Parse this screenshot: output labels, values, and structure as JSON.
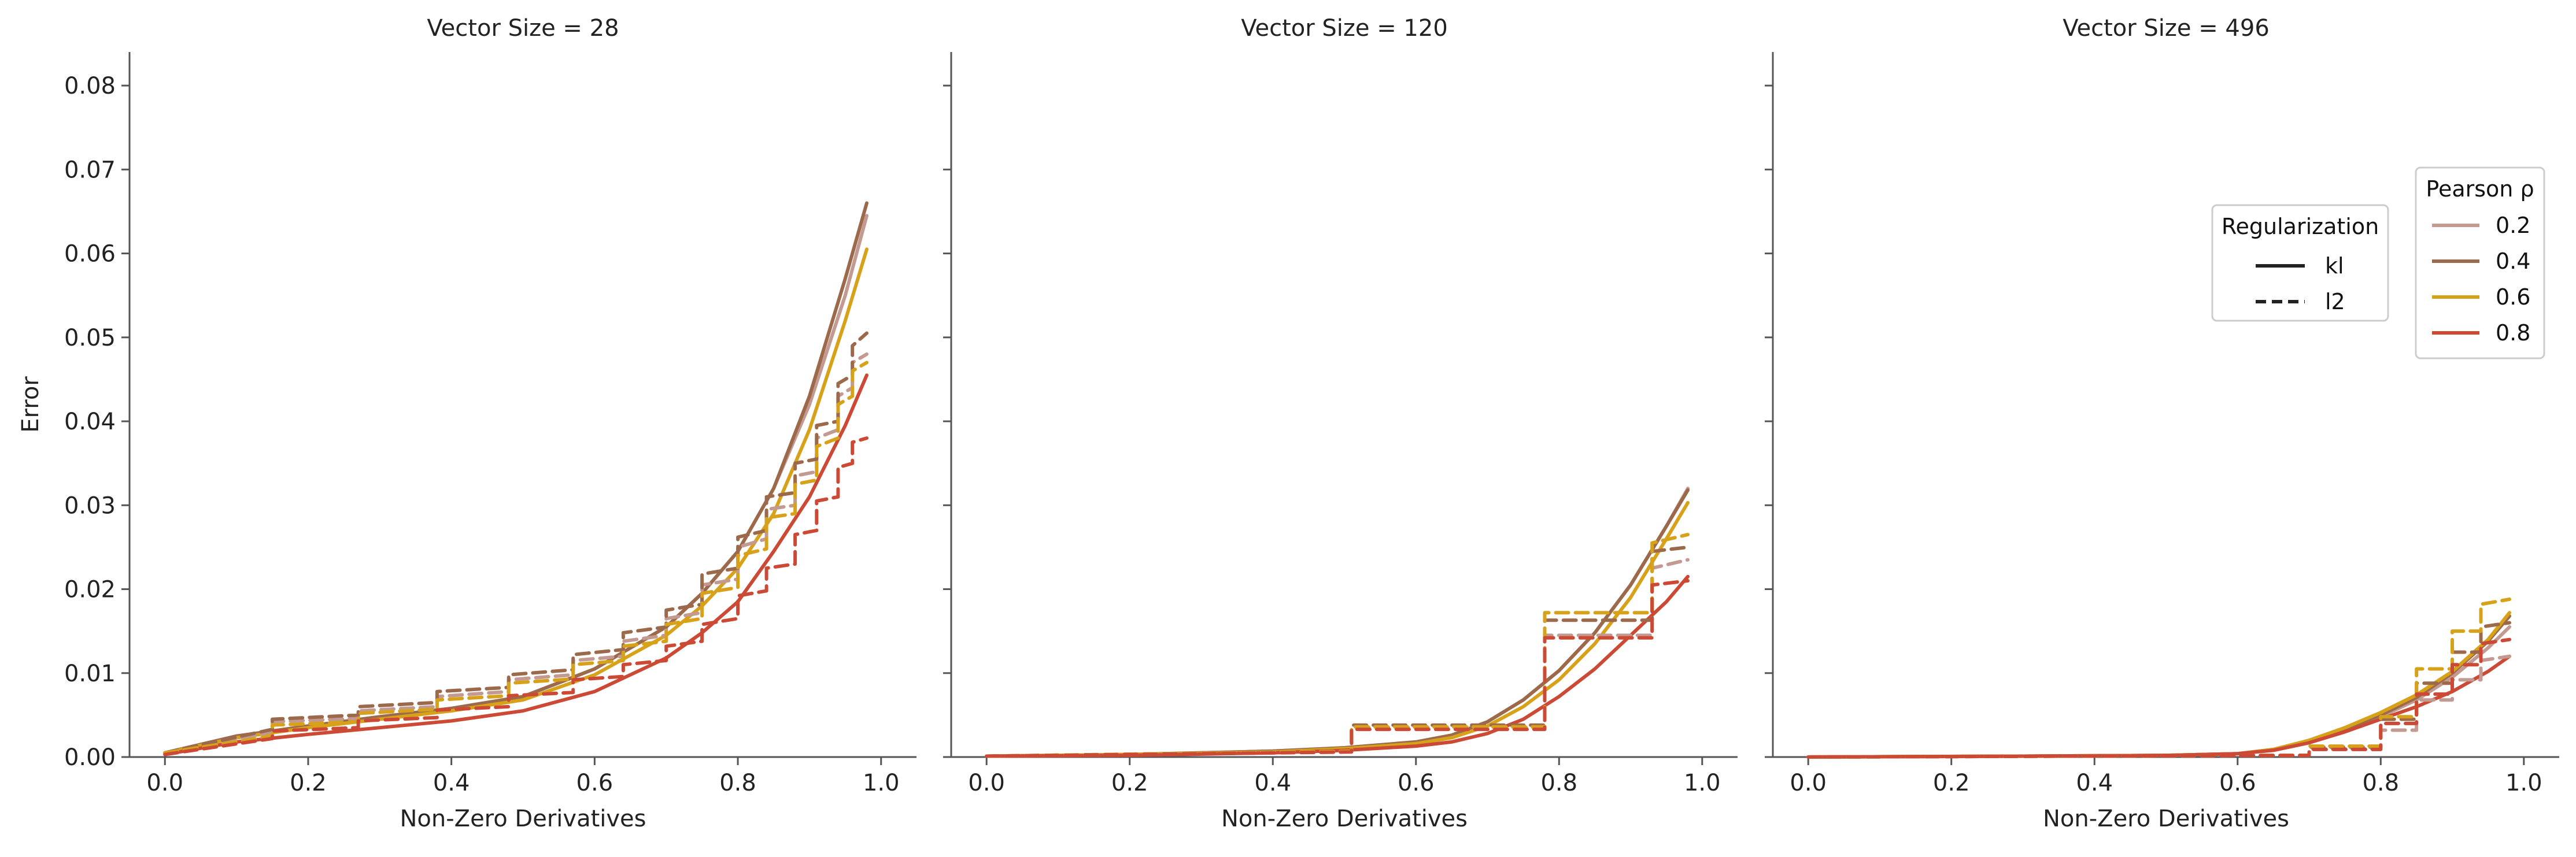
{
  "chart_data": {
    "type": "line",
    "shared_y_axis": true,
    "ylabel": "Error",
    "xlabel": "Non-Zero Derivatives",
    "xlim": [
      0.0,
      1.0
    ],
    "ylim": [
      0.0,
      0.084
    ],
    "xticks": [
      "0.0",
      "0.2",
      "0.4",
      "0.6",
      "0.8",
      "1.0"
    ],
    "yticks": [
      "0.00",
      "0.01",
      "0.02",
      "0.03",
      "0.04",
      "0.05",
      "0.06",
      "0.07",
      "0.08"
    ],
    "grid": false,
    "colors": {
      "0.2": "#c39a92",
      "0.4": "#9c6a4a",
      "0.6": "#d7a21a",
      "0.8": "#cc4a35"
    },
    "legend_regularization": {
      "title": "Regularization",
      "placement": "top-right, third panel",
      "entries": [
        {
          "label": "kl",
          "style": "solid"
        },
        {
          "label": "l2",
          "style": "dashed"
        }
      ]
    },
    "legend_pearson": {
      "title": "Pearson ρ",
      "placement": "top-right, third panel",
      "entries": [
        {
          "label": "0.2"
        },
        {
          "label": "0.4"
        },
        {
          "label": "0.6"
        },
        {
          "label": "0.8"
        }
      ]
    },
    "panels": [
      {
        "title": "Vector Size = 28",
        "series": [
          {
            "rho": "0.2",
            "reg": "kl",
            "x": [
              0.0,
              0.1,
              0.2,
              0.3,
              0.4,
              0.5,
              0.6,
              0.7,
              0.75,
              0.8,
              0.85,
              0.9,
              0.95,
              0.98
            ],
            "y": [
              0.0005,
              0.0025,
              0.0037,
              0.0048,
              0.0058,
              0.0072,
              0.0105,
              0.0155,
              0.0195,
              0.0245,
              0.032,
              0.042,
              0.055,
              0.0645
            ]
          },
          {
            "rho": "0.4",
            "reg": "kl",
            "x": [
              0.0,
              0.1,
              0.2,
              0.3,
              0.4,
              0.5,
              0.6,
              0.7,
              0.75,
              0.8,
              0.85,
              0.9,
              0.95,
              0.98
            ],
            "y": [
              0.0005,
              0.0025,
              0.0037,
              0.0048,
              0.0058,
              0.0072,
              0.0105,
              0.0155,
              0.0195,
              0.0245,
              0.032,
              0.043,
              0.057,
              0.066
            ]
          },
          {
            "rho": "0.6",
            "reg": "kl",
            "x": [
              0.0,
              0.1,
              0.2,
              0.3,
              0.4,
              0.5,
              0.6,
              0.7,
              0.75,
              0.8,
              0.85,
              0.9,
              0.95,
              0.98
            ],
            "y": [
              0.0005,
              0.0023,
              0.0035,
              0.0045,
              0.0055,
              0.0068,
              0.0098,
              0.0145,
              0.018,
              0.0225,
              0.029,
              0.039,
              0.052,
              0.0605
            ]
          },
          {
            "rho": "0.8",
            "reg": "kl",
            "x": [
              0.0,
              0.1,
              0.2,
              0.3,
              0.4,
              0.5,
              0.6,
              0.7,
              0.75,
              0.8,
              0.85,
              0.9,
              0.95,
              0.98
            ],
            "y": [
              0.0003,
              0.0018,
              0.0027,
              0.0035,
              0.0043,
              0.0055,
              0.0078,
              0.0118,
              0.0148,
              0.0185,
              0.0245,
              0.031,
              0.0395,
              0.0455
            ]
          },
          {
            "rho": "0.2",
            "reg": "l2",
            "x": [
              0.0,
              0.15,
              0.15,
              0.27,
              0.27,
              0.38,
              0.38,
              0.48,
              0.48,
              0.57,
              0.57,
              0.64,
              0.64,
              0.7,
              0.7,
              0.75,
              0.75,
              0.8,
              0.8,
              0.84,
              0.84,
              0.88,
              0.88,
              0.91,
              0.91,
              0.94,
              0.94,
              0.96,
              0.96,
              0.98
            ],
            "y": [
              0.0005,
              0.003,
              0.0042,
              0.0046,
              0.0055,
              0.006,
              0.0072,
              0.0078,
              0.0092,
              0.0098,
              0.0115,
              0.012,
              0.0138,
              0.0145,
              0.0165,
              0.0172,
              0.0205,
              0.0212,
              0.025,
              0.026,
              0.0295,
              0.03,
              0.0335,
              0.034,
              0.038,
              0.039,
              0.043,
              0.044,
              0.047,
              0.048
            ]
          },
          {
            "rho": "0.4",
            "reg": "l2",
            "x": [
              0.0,
              0.15,
              0.15,
              0.27,
              0.27,
              0.38,
              0.38,
              0.48,
              0.48,
              0.57,
              0.57,
              0.64,
              0.64,
              0.7,
              0.7,
              0.75,
              0.75,
              0.8,
              0.8,
              0.84,
              0.84,
              0.88,
              0.88,
              0.91,
              0.91,
              0.94,
              0.94,
              0.96,
              0.96,
              0.98
            ],
            "y": [
              0.0005,
              0.0033,
              0.0045,
              0.005,
              0.006,
              0.0065,
              0.0078,
              0.0083,
              0.0098,
              0.0104,
              0.0122,
              0.0128,
              0.0148,
              0.0155,
              0.0175,
              0.0182,
              0.0218,
              0.0225,
              0.0262,
              0.027,
              0.031,
              0.0315,
              0.035,
              0.0355,
              0.0395,
              0.04,
              0.0445,
              0.0455,
              0.049,
              0.0505
            ]
          },
          {
            "rho": "0.6",
            "reg": "l2",
            "x": [
              0.0,
              0.15,
              0.15,
              0.27,
              0.27,
              0.38,
              0.38,
              0.48,
              0.48,
              0.57,
              0.57,
              0.64,
              0.64,
              0.7,
              0.7,
              0.75,
              0.75,
              0.8,
              0.8,
              0.84,
              0.84,
              0.88,
              0.88,
              0.91,
              0.91,
              0.94,
              0.94,
              0.96,
              0.96,
              0.98
            ],
            "y": [
              0.0005,
              0.0025,
              0.0038,
              0.0042,
              0.0052,
              0.0057,
              0.0068,
              0.0073,
              0.0088,
              0.0093,
              0.011,
              0.0115,
              0.0132,
              0.0138,
              0.0158,
              0.0165,
              0.0195,
              0.0202,
              0.024,
              0.0248,
              0.0285,
              0.029,
              0.0325,
              0.033,
              0.037,
              0.038,
              0.042,
              0.043,
              0.046,
              0.047
            ]
          },
          {
            "rho": "0.8",
            "reg": "l2",
            "x": [
              0.0,
              0.15,
              0.15,
              0.27,
              0.27,
              0.38,
              0.38,
              0.48,
              0.48,
              0.57,
              0.57,
              0.64,
              0.64,
              0.7,
              0.7,
              0.75,
              0.75,
              0.8,
              0.8,
              0.84,
              0.84,
              0.88,
              0.88,
              0.91,
              0.91,
              0.94,
              0.94,
              0.96,
              0.96,
              0.98
            ],
            "y": [
              0.0003,
              0.0022,
              0.0031,
              0.0035,
              0.0043,
              0.0047,
              0.0056,
              0.006,
              0.0073,
              0.0077,
              0.0092,
              0.0096,
              0.011,
              0.0115,
              0.0132,
              0.0138,
              0.0158,
              0.0165,
              0.0192,
              0.0198,
              0.0225,
              0.023,
              0.0265,
              0.027,
              0.0305,
              0.031,
              0.0345,
              0.035,
              0.0375,
              0.038
            ]
          }
        ]
      },
      {
        "title": "Vector Size = 120",
        "series": [
          {
            "rho": "0.2",
            "reg": "kl",
            "x": [
              0.0,
              0.2,
              0.4,
              0.5,
              0.6,
              0.65,
              0.7,
              0.75,
              0.8,
              0.85,
              0.9,
              0.95,
              0.98
            ],
            "y": [
              0.0001,
              0.0003,
              0.0007,
              0.0011,
              0.0018,
              0.0026,
              0.0042,
              0.0068,
              0.0103,
              0.0148,
              0.0205,
              0.0275,
              0.032
            ]
          },
          {
            "rho": "0.4",
            "reg": "kl",
            "x": [
              0.0,
              0.2,
              0.4,
              0.5,
              0.6,
              0.65,
              0.7,
              0.75,
              0.8,
              0.85,
              0.9,
              0.95,
              0.98
            ],
            "y": [
              0.0001,
              0.0003,
              0.0007,
              0.0011,
              0.0018,
              0.0026,
              0.0042,
              0.0068,
              0.0103,
              0.0148,
              0.0205,
              0.0275,
              0.0318
            ]
          },
          {
            "rho": "0.6",
            "reg": "kl",
            "x": [
              0.0,
              0.2,
              0.4,
              0.5,
              0.6,
              0.65,
              0.7,
              0.75,
              0.8,
              0.85,
              0.9,
              0.95,
              0.98
            ],
            "y": [
              0.0001,
              0.0003,
              0.0006,
              0.001,
              0.0016,
              0.0023,
              0.0037,
              0.006,
              0.0092,
              0.0135,
              0.019,
              0.026,
              0.0303
            ]
          },
          {
            "rho": "0.8",
            "reg": "kl",
            "x": [
              0.0,
              0.2,
              0.4,
              0.5,
              0.6,
              0.65,
              0.7,
              0.75,
              0.8,
              0.85,
              0.9,
              0.95,
              0.98
            ],
            "y": [
              0.0001,
              0.0002,
              0.0005,
              0.0008,
              0.0013,
              0.0018,
              0.0028,
              0.0045,
              0.0072,
              0.0105,
              0.0145,
              0.0185,
              0.0215
            ]
          },
          {
            "rho": "0.2",
            "reg": "l2",
            "x": [
              0.0,
              0.51,
              0.51,
              0.78,
              0.78,
              0.93,
              0.93,
              0.98
            ],
            "y": [
              0.0001,
              0.0007,
              0.0035,
              0.0035,
              0.0145,
              0.0145,
              0.0225,
              0.0235
            ]
          },
          {
            "rho": "0.4",
            "reg": "l2",
            "x": [
              0.0,
              0.51,
              0.51,
              0.78,
              0.78,
              0.93,
              0.93,
              0.98
            ],
            "y": [
              0.0001,
              0.0007,
              0.0038,
              0.0038,
              0.0163,
              0.0163,
              0.0245,
              0.025
            ]
          },
          {
            "rho": "0.6",
            "reg": "l2",
            "x": [
              0.0,
              0.51,
              0.51,
              0.78,
              0.78,
              0.93,
              0.93,
              0.98
            ],
            "y": [
              0.0001,
              0.0007,
              0.0036,
              0.0036,
              0.0172,
              0.0172,
              0.0255,
              0.0265
            ]
          },
          {
            "rho": "0.8",
            "reg": "l2",
            "x": [
              0.0,
              0.51,
              0.51,
              0.78,
              0.78,
              0.93,
              0.93,
              0.98
            ],
            "y": [
              0.0001,
              0.0006,
              0.0033,
              0.0033,
              0.0142,
              0.0142,
              0.0205,
              0.021
            ]
          }
        ]
      },
      {
        "title": "Vector Size = 496",
        "series": [
          {
            "rho": "0.2",
            "reg": "kl",
            "x": [
              0.0,
              0.3,
              0.5,
              0.6,
              0.65,
              0.7,
              0.75,
              0.8,
              0.85,
              0.9,
              0.95,
              0.98
            ],
            "y": [
              0.0,
              0.0001,
              0.0002,
              0.0004,
              0.0008,
              0.0017,
              0.003,
              0.0048,
              0.0068,
              0.0095,
              0.013,
              0.0155
            ]
          },
          {
            "rho": "0.4",
            "reg": "kl",
            "x": [
              0.0,
              0.3,
              0.5,
              0.6,
              0.65,
              0.7,
              0.75,
              0.8,
              0.85,
              0.9,
              0.95,
              0.98
            ],
            "y": [
              0.0,
              0.0001,
              0.0002,
              0.0004,
              0.0009,
              0.0019,
              0.0033,
              0.005,
              0.0071,
              0.01,
              0.0138,
              0.0168
            ]
          },
          {
            "rho": "0.6",
            "reg": "kl",
            "x": [
              0.0,
              0.3,
              0.5,
              0.6,
              0.65,
              0.7,
              0.75,
              0.8,
              0.85,
              0.9,
              0.95,
              0.98
            ],
            "y": [
              0.0,
              0.0001,
              0.0002,
              0.0004,
              0.0009,
              0.002,
              0.0035,
              0.0053,
              0.0074,
              0.0102,
              0.014,
              0.0172
            ]
          },
          {
            "rho": "0.8",
            "reg": "kl",
            "x": [
              0.0,
              0.3,
              0.5,
              0.6,
              0.65,
              0.7,
              0.75,
              0.8,
              0.85,
              0.9,
              0.95,
              0.98
            ],
            "y": [
              0.0,
              0.0001,
              0.0002,
              0.0004,
              0.0008,
              0.0017,
              0.003,
              0.0045,
              0.006,
              0.0078,
              0.0102,
              0.012
            ]
          },
          {
            "rho": "0.2",
            "reg": "l2",
            "x": [
              0.0,
              0.7,
              0.7,
              0.8,
              0.8,
              0.85,
              0.85,
              0.9,
              0.9,
              0.94,
              0.94,
              0.98
            ],
            "y": [
              0.0,
              0.0002,
              0.001,
              0.001,
              0.0032,
              0.0032,
              0.0068,
              0.0068,
              0.0092,
              0.0092,
              0.0115,
              0.012
            ]
          },
          {
            "rho": "0.4",
            "reg": "l2",
            "x": [
              0.0,
              0.7,
              0.7,
              0.8,
              0.8,
              0.85,
              0.85,
              0.9,
              0.9,
              0.94,
              0.94,
              0.98
            ],
            "y": [
              0.0,
              0.0002,
              0.0012,
              0.0012,
              0.0045,
              0.0045,
              0.0088,
              0.0088,
              0.0125,
              0.0125,
              0.0155,
              0.016
            ]
          },
          {
            "rho": "0.6",
            "reg": "l2",
            "x": [
              0.0,
              0.7,
              0.7,
              0.8,
              0.8,
              0.85,
              0.85,
              0.9,
              0.9,
              0.94,
              0.94,
              0.98
            ],
            "y": [
              0.0,
              0.0002,
              0.0013,
              0.0013,
              0.0048,
              0.0048,
              0.0105,
              0.0105,
              0.015,
              0.015,
              0.0182,
              0.0188
            ]
          },
          {
            "rho": "0.8",
            "reg": "l2",
            "x": [
              0.0,
              0.7,
              0.7,
              0.8,
              0.8,
              0.85,
              0.85,
              0.9,
              0.9,
              0.94,
              0.94,
              0.98
            ],
            "y": [
              0.0,
              0.0002,
              0.0009,
              0.0009,
              0.004,
              0.004,
              0.0075,
              0.0075,
              0.011,
              0.011,
              0.0135,
              0.014
            ]
          }
        ]
      }
    ]
  }
}
